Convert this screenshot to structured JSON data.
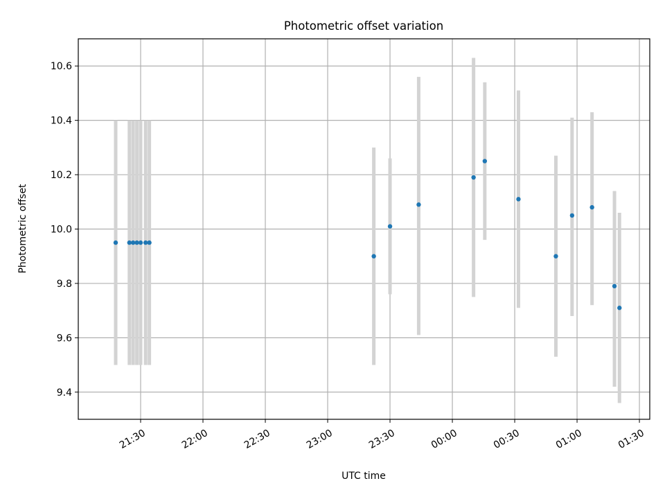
{
  "chart_data": {
    "type": "scatter",
    "title": "Photometric offset variation",
    "xlabel": "UTC time",
    "ylabel": "Photometric offset",
    "x_unit": "UTC clock time (hours past midnight, continues past 24)",
    "xlim": [
      21.0,
      25.583
    ],
    "ylim": [
      9.3,
      10.7
    ],
    "x_ticks": [
      {
        "value": 21.5,
        "label": "21:30"
      },
      {
        "value": 22.0,
        "label": "22:00"
      },
      {
        "value": 22.5,
        "label": "22:30"
      },
      {
        "value": 23.0,
        "label": "23:00"
      },
      {
        "value": 23.5,
        "label": "23:30"
      },
      {
        "value": 24.0,
        "label": "00:00"
      },
      {
        "value": 24.5,
        "label": "00:30"
      },
      {
        "value": 25.0,
        "label": "01:00"
      },
      {
        "value": 25.5,
        "label": "01:30"
      }
    ],
    "y_ticks": [
      {
        "value": 9.4,
        "label": "9.4"
      },
      {
        "value": 9.6,
        "label": "9.6"
      },
      {
        "value": 9.8,
        "label": "9.8"
      },
      {
        "value": 10.0,
        "label": "10.0"
      },
      {
        "value": 10.2,
        "label": "10.2"
      },
      {
        "value": 10.4,
        "label": "10.4"
      },
      {
        "value": 10.6,
        "label": "10.6"
      }
    ],
    "grid": true,
    "legend": "none",
    "marker_color": "#1f77b4",
    "errorbar_color": "#d3d3d3",
    "series": [
      {
        "points": [
          {
            "x": 21.3,
            "y": 9.95,
            "err_low": 9.5,
            "err_high": 10.4
          },
          {
            "x": 21.41,
            "y": 9.95,
            "err_low": 9.5,
            "err_high": 10.4
          },
          {
            "x": 21.44,
            "y": 9.95,
            "err_low": 9.5,
            "err_high": 10.4
          },
          {
            "x": 21.47,
            "y": 9.95,
            "err_low": 9.5,
            "err_high": 10.4
          },
          {
            "x": 21.5,
            "y": 9.95,
            "err_low": 9.5,
            "err_high": 10.4
          },
          {
            "x": 21.54,
            "y": 9.95,
            "err_low": 9.5,
            "err_high": 10.4
          },
          {
            "x": 21.57,
            "y": 9.95,
            "err_low": 9.5,
            "err_high": 10.4
          },
          {
            "x": 23.37,
            "y": 9.9,
            "err_low": 9.5,
            "err_high": 10.3
          },
          {
            "x": 23.5,
            "y": 10.01,
            "err_low": 9.76,
            "err_high": 10.26
          },
          {
            "x": 23.73,
            "y": 10.09,
            "err_low": 9.61,
            "err_high": 10.56
          },
          {
            "x": 24.17,
            "y": 10.19,
            "err_low": 9.75,
            "err_high": 10.63
          },
          {
            "x": 24.26,
            "y": 10.25,
            "err_low": 9.96,
            "err_high": 10.54
          },
          {
            "x": 24.53,
            "y": 10.11,
            "err_low": 9.71,
            "err_high": 10.51
          },
          {
            "x": 24.83,
            "y": 9.9,
            "err_low": 9.53,
            "err_high": 10.27
          },
          {
            "x": 24.96,
            "y": 10.05,
            "err_low": 9.68,
            "err_high": 10.41
          },
          {
            "x": 25.12,
            "y": 10.08,
            "err_low": 9.72,
            "err_high": 10.43
          },
          {
            "x": 25.3,
            "y": 9.79,
            "err_low": 9.42,
            "err_high": 10.14
          },
          {
            "x": 25.34,
            "y": 9.71,
            "err_low": 9.36,
            "err_high": 10.06
          }
        ]
      }
    ]
  }
}
